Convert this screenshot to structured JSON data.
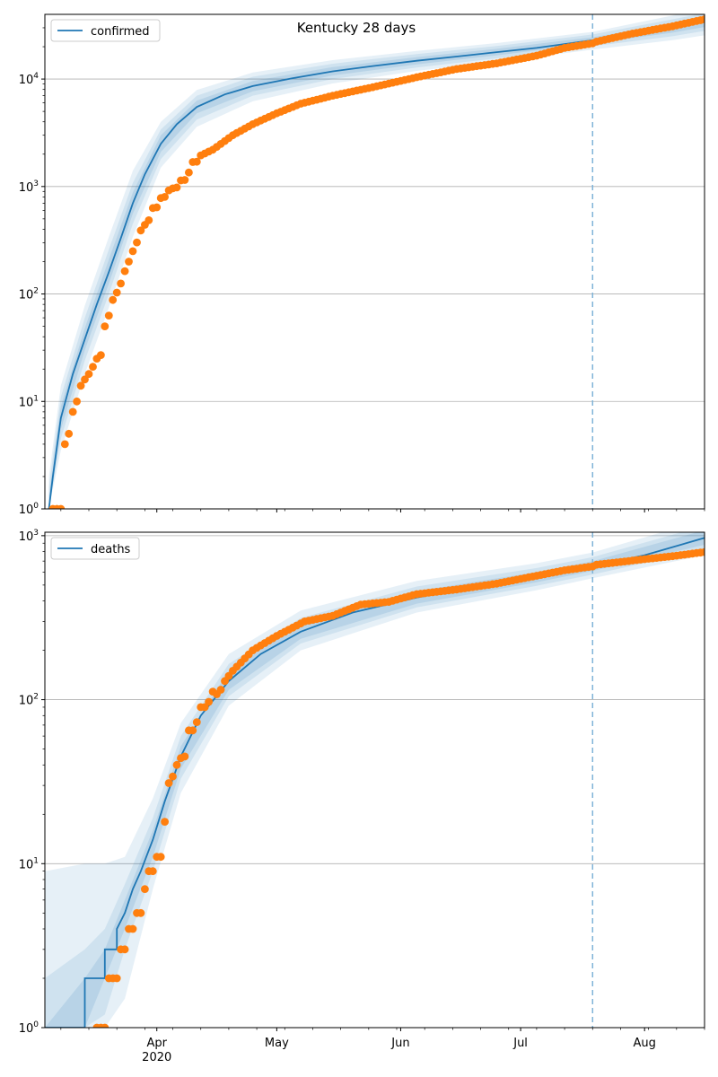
{
  "title": "Kentucky 28 days",
  "colors": {
    "model": "#1f77b4",
    "observed": "#ff7f0e",
    "band": "#1f77b4",
    "forecast_line": "#7fb3d8",
    "grid": "#b0b0b0"
  },
  "chart_data": [
    {
      "type": "line",
      "legend": "confirmed",
      "legend_position": "top-left",
      "yscale": "log",
      "ylim": [
        1,
        40000
      ],
      "yticks": [
        {
          "value": 1,
          "base": "10",
          "exp": "0"
        },
        {
          "value": 10,
          "base": "10",
          "exp": "1"
        },
        {
          "value": 100,
          "base": "10",
          "exp": "2"
        },
        {
          "value": 1000,
          "base": "10",
          "exp": "3"
        },
        {
          "value": 10000,
          "base": "10",
          "exp": "4"
        }
      ],
      "grid": "y-major",
      "forecast_start": "2020-07-19",
      "model_line": [
        [
          "2020-03-05",
          1
        ],
        [
          "2020-03-06",
          2
        ],
        [
          "2020-03-08",
          7
        ],
        [
          "2020-03-11",
          18
        ],
        [
          "2020-03-14",
          38
        ],
        [
          "2020-03-17",
          80
        ],
        [
          "2020-03-20",
          160
        ],
        [
          "2020-03-23",
          330
        ],
        [
          "2020-03-26",
          700
        ],
        [
          "2020-03-29",
          1300
        ],
        [
          "2020-04-02",
          2500
        ],
        [
          "2020-04-06",
          3800
        ],
        [
          "2020-04-11",
          5500
        ],
        [
          "2020-04-18",
          7200
        ],
        [
          "2020-04-25",
          8600
        ],
        [
          "2020-05-05",
          10200
        ],
        [
          "2020-05-15",
          11800
        ],
        [
          "2020-05-25",
          13200
        ],
        [
          "2020-06-05",
          14800
        ],
        [
          "2020-06-15",
          16200
        ],
        [
          "2020-06-25",
          17800
        ],
        [
          "2020-07-05",
          19500
        ],
        [
          "2020-07-19",
          23000
        ],
        [
          "2020-07-29",
          26000
        ],
        [
          "2020-08-08",
          30000
        ],
        [
          "2020-08-16",
          34000
        ]
      ],
      "band_inner": [
        [
          "2020-03-05",
          1,
          1.3
        ],
        [
          "2020-03-08",
          5.5,
          9
        ],
        [
          "2020-03-14",
          30,
          48
        ],
        [
          "2020-03-20",
          125,
          210
        ],
        [
          "2020-03-26",
          560,
          880
        ],
        [
          "2020-04-02",
          2100,
          3000
        ],
        [
          "2020-04-11",
          4800,
          6300
        ],
        [
          "2020-04-25",
          7700,
          9600
        ],
        [
          "2020-05-15",
          10800,
          12900
        ],
        [
          "2020-06-05",
          13700,
          16000
        ],
        [
          "2020-06-25",
          16600,
          19100
        ],
        [
          "2020-07-19",
          21500,
          24500
        ],
        [
          "2020-08-08",
          27000,
          33000
        ],
        [
          "2020-08-16",
          30500,
          37500
        ]
      ],
      "band_mid": [
        [
          "2020-03-05",
          1,
          1.6
        ],
        [
          "2020-03-08",
          4.5,
          11
        ],
        [
          "2020-03-14",
          24,
          60
        ],
        [
          "2020-03-20",
          100,
          260
        ],
        [
          "2020-03-26",
          450,
          1080
        ],
        [
          "2020-04-02",
          1800,
          3400
        ],
        [
          "2020-04-11",
          4200,
          7000
        ],
        [
          "2020-04-25",
          7000,
          10500
        ],
        [
          "2020-05-15",
          10000,
          13900
        ],
        [
          "2020-06-05",
          12800,
          17100
        ],
        [
          "2020-06-25",
          15600,
          20300
        ],
        [
          "2020-07-19",
          20200,
          26000
        ],
        [
          "2020-08-08",
          25000,
          36000
        ],
        [
          "2020-08-16",
          28000,
          41000
        ]
      ],
      "band_outer": [
        [
          "2020-03-05",
          1,
          2
        ],
        [
          "2020-03-08",
          3.5,
          14
        ],
        [
          "2020-03-14",
          18,
          78
        ],
        [
          "2020-03-20",
          75,
          340
        ],
        [
          "2020-03-26",
          340,
          1400
        ],
        [
          "2020-04-02",
          1500,
          4000
        ],
        [
          "2020-04-11",
          3600,
          7900
        ],
        [
          "2020-04-25",
          6200,
          11500
        ],
        [
          "2020-05-15",
          9100,
          15000
        ],
        [
          "2020-06-05",
          11900,
          18300
        ],
        [
          "2020-06-25",
          14500,
          21600
        ],
        [
          "2020-07-19",
          18800,
          27500
        ],
        [
          "2020-08-08",
          23000,
          39000
        ],
        [
          "2020-08-16",
          25500,
          45000
        ]
      ],
      "observed": {
        "start": "2020-03-06",
        "end": "2020-07-19",
        "anchors": [
          [
            "2020-03-06",
            1
          ],
          [
            "2020-03-08",
            1
          ],
          [
            "2020-03-09",
            4
          ],
          [
            "2020-03-10",
            5
          ],
          [
            "2020-03-11",
            8
          ],
          [
            "2020-03-12",
            10
          ],
          [
            "2020-03-13",
            14
          ],
          [
            "2020-03-14",
            16
          ],
          [
            "2020-03-15",
            18
          ],
          [
            "2020-03-16",
            21
          ],
          [
            "2020-03-17",
            25
          ],
          [
            "2020-03-18",
            27
          ],
          [
            "2020-03-19",
            50
          ],
          [
            "2020-03-20",
            63
          ],
          [
            "2020-03-21",
            88
          ],
          [
            "2020-03-22",
            103
          ],
          [
            "2020-03-23",
            125
          ],
          [
            "2020-03-24",
            163
          ],
          [
            "2020-03-25",
            200
          ],
          [
            "2020-03-26",
            250
          ],
          [
            "2020-03-27",
            302
          ],
          [
            "2020-03-28",
            390
          ],
          [
            "2020-03-29",
            440
          ],
          [
            "2020-03-30",
            485
          ],
          [
            "2020-03-31",
            630
          ],
          [
            "2020-04-01",
            640
          ],
          [
            "2020-04-02",
            780
          ],
          [
            "2020-04-03",
            800
          ],
          [
            "2020-04-04",
            920
          ],
          [
            "2020-04-05",
            960
          ],
          [
            "2020-04-06",
            980
          ],
          [
            "2020-04-07",
            1140
          ],
          [
            "2020-04-08",
            1150
          ],
          [
            "2020-04-09",
            1350
          ],
          [
            "2020-04-10",
            1690
          ],
          [
            "2020-04-11",
            1700
          ],
          [
            "2020-04-12",
            1950
          ],
          [
            "2020-04-15",
            2200
          ],
          [
            "2020-04-20",
            3000
          ],
          [
            "2020-04-25",
            3800
          ],
          [
            "2020-05-01",
            4800
          ],
          [
            "2020-05-07",
            5900
          ],
          [
            "2020-05-15",
            7000
          ],
          [
            "2020-05-25",
            8400
          ],
          [
            "2020-06-05",
            10400
          ],
          [
            "2020-06-15",
            12400
          ],
          [
            "2020-06-25",
            14000
          ],
          [
            "2020-07-05",
            16500
          ],
          [
            "2020-07-12",
            19500
          ],
          [
            "2020-07-19",
            21500
          ]
        ]
      },
      "observed_forecast": {
        "start": "2020-07-20",
        "end": "2020-08-16",
        "anchors": [
          [
            "2020-07-20",
            22300
          ],
          [
            "2020-07-29",
            26500
          ],
          [
            "2020-08-08",
            31000
          ],
          [
            "2020-08-16",
            36000
          ]
        ]
      }
    },
    {
      "type": "line",
      "legend": "deaths",
      "legend_position": "top-left",
      "yscale": "log",
      "ylim": [
        1,
        1050
      ],
      "yticks": [
        {
          "value": 1,
          "base": "10",
          "exp": "0"
        },
        {
          "value": 10,
          "base": "10",
          "exp": "1"
        },
        {
          "value": 100,
          "base": "10",
          "exp": "2"
        },
        {
          "value": 1000,
          "base": "10",
          "exp": "3"
        }
      ],
      "grid": "y-major",
      "forecast_start": "2020-07-19",
      "model_line": [
        [
          "2020-03-04",
          1
        ],
        [
          "2020-03-14",
          1
        ],
        [
          "2020-03-14",
          2
        ],
        [
          "2020-03-19",
          2
        ],
        [
          "2020-03-19",
          3
        ],
        [
          "2020-03-22",
          3
        ],
        [
          "2020-03-22",
          4
        ],
        [
          "2020-03-24",
          5
        ],
        [
          "2020-03-26",
          7
        ],
        [
          "2020-03-28",
          9
        ],
        [
          "2020-03-31",
          14
        ],
        [
          "2020-04-03",
          24
        ],
        [
          "2020-04-07",
          45
        ],
        [
          "2020-04-12",
          80
        ],
        [
          "2020-04-19",
          130
        ],
        [
          "2020-04-27",
          190
        ],
        [
          "2020-05-07",
          260
        ],
        [
          "2020-05-20",
          340
        ],
        [
          "2020-06-05",
          420
        ],
        [
          "2020-06-20",
          490
        ],
        [
          "2020-07-05",
          560
        ],
        [
          "2020-07-19",
          650
        ],
        [
          "2020-08-01",
          760
        ],
        [
          "2020-08-16",
          970
        ]
      ],
      "band_inner": [
        [
          "2020-03-04",
          1,
          1
        ],
        [
          "2020-03-14",
          1,
          2
        ],
        [
          "2020-03-19",
          2,
          3
        ],
        [
          "2020-03-24",
          4,
          6
        ],
        [
          "2020-03-31",
          11,
          16
        ],
        [
          "2020-04-07",
          38,
          52
        ],
        [
          "2020-04-19",
          115,
          150
        ],
        [
          "2020-05-07",
          235,
          290
        ],
        [
          "2020-06-05",
          385,
          460
        ],
        [
          "2020-07-05",
          520,
          600
        ],
        [
          "2020-07-19",
          610,
          700
        ],
        [
          "2020-08-16",
          880,
          1080
        ]
      ],
      "band_mid": [
        [
          "2020-03-04",
          1,
          2
        ],
        [
          "2020-03-14",
          1,
          3
        ],
        [
          "2020-03-19",
          1.2,
          4
        ],
        [
          "2020-03-24",
          3,
          7.5
        ],
        [
          "2020-03-31",
          9,
          19
        ],
        [
          "2020-04-07",
          33,
          60
        ],
        [
          "2020-04-19",
          105,
          165
        ],
        [
          "2020-05-07",
          220,
          315
        ],
        [
          "2020-06-05",
          365,
          490
        ],
        [
          "2020-07-05",
          495,
          635
        ],
        [
          "2020-07-19",
          580,
          740
        ],
        [
          "2020-08-16",
          820,
          1150
        ]
      ],
      "band_outer": [
        [
          "2020-03-04",
          1,
          9
        ],
        [
          "2020-03-14",
          1,
          10
        ],
        [
          "2020-03-19",
          1,
          10
        ],
        [
          "2020-03-24",
          1.5,
          11
        ],
        [
          "2020-03-31",
          7,
          25
        ],
        [
          "2020-04-07",
          27,
          72
        ],
        [
          "2020-04-19",
          92,
          190
        ],
        [
          "2020-05-07",
          200,
          350
        ],
        [
          "2020-06-05",
          340,
          530
        ],
        [
          "2020-07-05",
          465,
          680
        ],
        [
          "2020-07-19",
          550,
          790
        ],
        [
          "2020-08-16",
          760,
          1250
        ]
      ],
      "observed": {
        "start": "2020-03-17",
        "end": "2020-07-19",
        "anchors": [
          [
            "2020-03-17",
            1
          ],
          [
            "2020-03-19",
            1
          ],
          [
            "2020-03-20",
            2
          ],
          [
            "2020-03-22",
            2
          ],
          [
            "2020-03-23",
            3
          ],
          [
            "2020-03-24",
            3
          ],
          [
            "2020-03-25",
            4
          ],
          [
            "2020-03-26",
            4
          ],
          [
            "2020-03-27",
            5
          ],
          [
            "2020-03-28",
            5
          ],
          [
            "2020-03-29",
            7
          ],
          [
            "2020-03-30",
            9
          ],
          [
            "2020-03-31",
            9
          ],
          [
            "2020-04-01",
            11
          ],
          [
            "2020-04-02",
            11
          ],
          [
            "2020-04-03",
            18
          ],
          [
            "2020-04-04",
            31
          ],
          [
            "2020-04-05",
            34
          ],
          [
            "2020-04-06",
            40
          ],
          [
            "2020-04-07",
            44
          ],
          [
            "2020-04-08",
            45
          ],
          [
            "2020-04-09",
            65
          ],
          [
            "2020-04-10",
            65
          ],
          [
            "2020-04-11",
            73
          ],
          [
            "2020-04-12",
            90
          ],
          [
            "2020-04-13",
            90
          ],
          [
            "2020-04-14",
            97
          ],
          [
            "2020-04-15",
            112
          ],
          [
            "2020-04-16",
            108
          ],
          [
            "2020-04-17",
            115
          ],
          [
            "2020-04-18",
            130
          ],
          [
            "2020-04-20",
            150
          ],
          [
            "2020-04-25",
            200
          ],
          [
            "2020-05-01",
            245
          ],
          [
            "2020-05-08",
            300
          ],
          [
            "2020-05-15",
            325
          ],
          [
            "2020-05-22",
            380
          ],
          [
            "2020-05-29",
            395
          ],
          [
            "2020-06-05",
            440
          ],
          [
            "2020-06-15",
            470
          ],
          [
            "2020-06-25",
            510
          ],
          [
            "2020-07-05",
            570
          ],
          [
            "2020-07-12",
            615
          ],
          [
            "2020-07-19",
            650
          ]
        ]
      },
      "observed_forecast": {
        "start": "2020-07-20",
        "end": "2020-08-16",
        "anchors": [
          [
            "2020-07-20",
            665
          ],
          [
            "2020-07-31",
            715
          ],
          [
            "2020-08-08",
            750
          ],
          [
            "2020-08-16",
            795
          ]
        ]
      }
    }
  ],
  "xaxis": {
    "start": "2020-03-04",
    "end": "2020-08-16",
    "major_ticks": [
      {
        "date": "2020-04-01",
        "label": "Apr"
      },
      {
        "date": "2020-05-01",
        "label": "May"
      },
      {
        "date": "2020-06-01",
        "label": "Jun"
      },
      {
        "date": "2020-07-01",
        "label": "Jul"
      },
      {
        "date": "2020-08-01",
        "label": "Aug"
      }
    ],
    "year_label": "2020"
  }
}
